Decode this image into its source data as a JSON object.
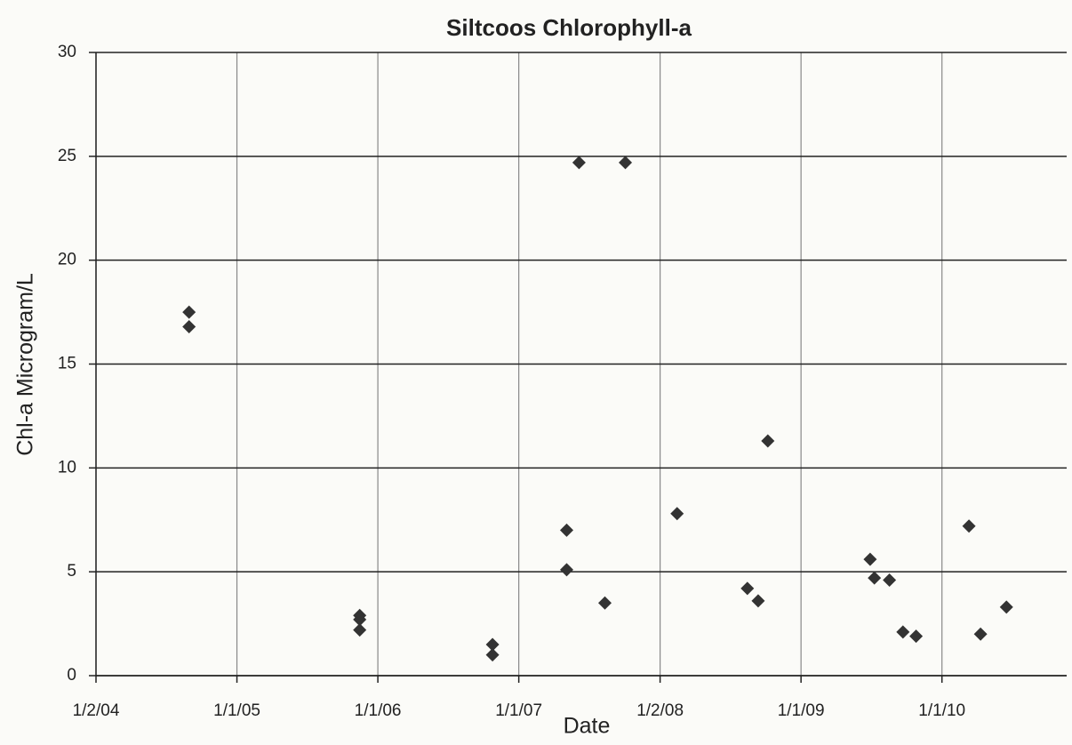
{
  "chart_data": {
    "type": "scatter",
    "title": "Siltcoos  Chlorophyll-a",
    "x_label": "Date",
    "y_label": "Chl-a  Microgram/L",
    "x": [
      "2004-08-30",
      "2004-08-30",
      "2005-11-15",
      "2005-11-15",
      "2005-11-15",
      "2006-10-25",
      "2006-10-25",
      "2007-05-05",
      "2007-05-05",
      "2007-06-06",
      "2007-08-12",
      "2007-10-04",
      "2008-02-15",
      "2008-08-15",
      "2008-09-12",
      "2008-10-07",
      "2009-06-29",
      "2009-07-10",
      "2009-08-18",
      "2009-09-22",
      "2009-10-26",
      "2010-03-12",
      "2010-04-11",
      "2010-06-17"
    ],
    "values": [
      17.5,
      16.8,
      2.9,
      2.7,
      2.2,
      1.5,
      1.0,
      7.0,
      5.1,
      24.7,
      3.5,
      24.7,
      7.8,
      4.2,
      3.6,
      11.3,
      5.6,
      4.7,
      4.6,
      2.1,
      1.9,
      7.2,
      2.0,
      3.3
    ],
    "color": "#333333",
    "xlim": [
      "2004-01-02",
      "2010-11-20"
    ],
    "xticks": [
      {
        "value": "2004-01-02",
        "label": "1/2/04"
      },
      {
        "value": "2005-01-01",
        "label": "1/1/05"
      },
      {
        "value": "2006-01-01",
        "label": "1/1/06"
      },
      {
        "value": "2007-01-01",
        "label": "1/1/07"
      },
      {
        "value": "2008-01-02",
        "label": "1/2/08"
      },
      {
        "value": "2009-01-01",
        "label": "1/1/09"
      },
      {
        "value": "2010-01-01",
        "label": "1/1/10"
      }
    ],
    "ylim": [
      0,
      30
    ],
    "yticks": [
      0,
      5,
      10,
      15,
      20,
      25,
      30
    ],
    "grid": true
  }
}
